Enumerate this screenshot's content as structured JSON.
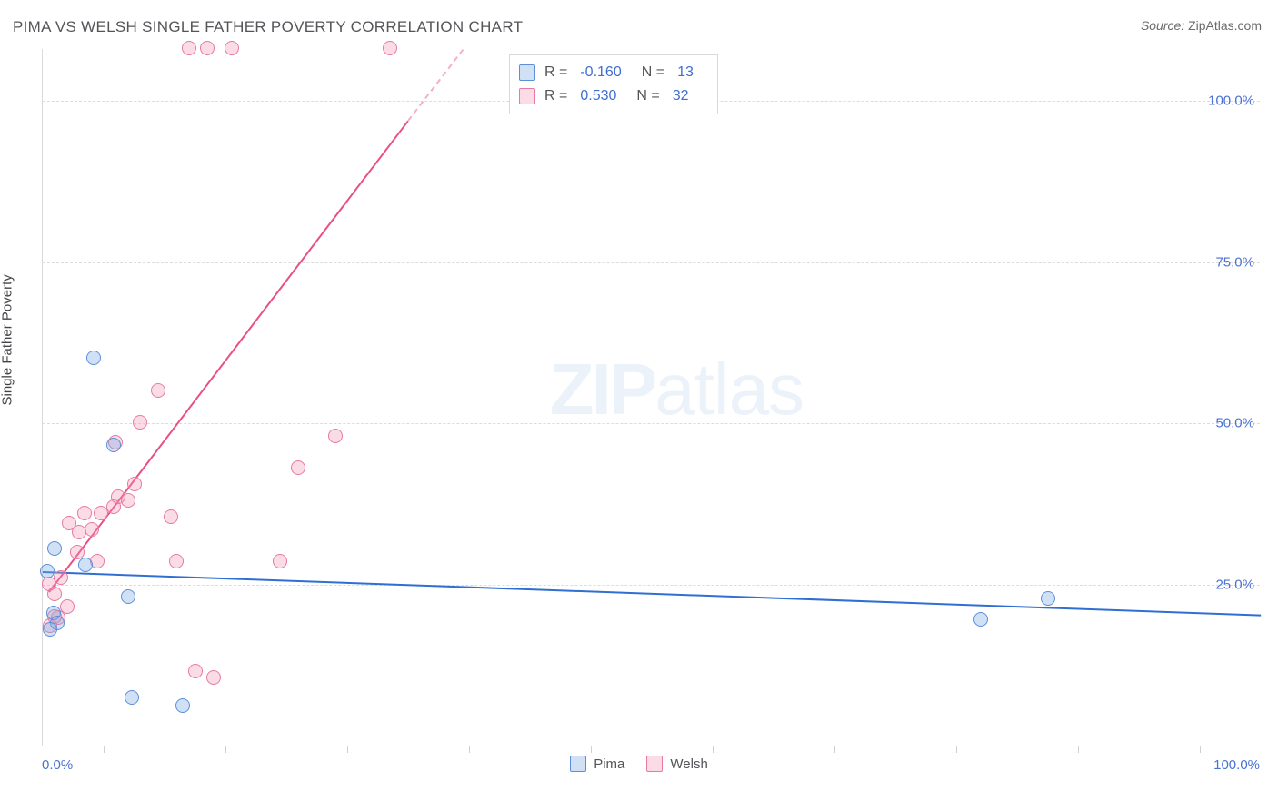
{
  "title": "PIMA VS WELSH SINGLE FATHER POVERTY CORRELATION CHART",
  "source_label": "Source:",
  "source_value": "ZipAtlas.com",
  "axis": {
    "y_title": "Single Father Poverty",
    "x_min_label": "0.0%",
    "x_max_label": "100.0%",
    "y_ticks": [
      {
        "value": 25,
        "label": "25.0%"
      },
      {
        "value": 50,
        "label": "50.0%"
      },
      {
        "value": 75,
        "label": "75.0%"
      },
      {
        "value": 100,
        "label": "100.0%"
      }
    ],
    "x_tick_positions": [
      5,
      15,
      25,
      35,
      45,
      55,
      65,
      75,
      85,
      95
    ],
    "xlim": [
      0,
      100
    ],
    "ylim": [
      0,
      108
    ],
    "grid_color": "#dcdce0",
    "axis_line_color": "#d9d9de",
    "label_color": "#4a72d4",
    "tick_fontsize": 15,
    "title_fontsize": 17
  },
  "series": {
    "pima": {
      "label": "Pima",
      "marker_fill": "rgba(120,168,230,0.35)",
      "marker_stroke": "#5b8fd9",
      "trend_color": "#2f6fd0",
      "R_label": "R =",
      "R_value": "-0.160",
      "N_label": "N =",
      "N_value": "13",
      "trend": {
        "x1": 0,
        "y1": 27.2,
        "x2": 100,
        "y2": 20.5
      },
      "points": [
        {
          "x": 1.0,
          "y": 30.5
        },
        {
          "x": 0.4,
          "y": 27.0
        },
        {
          "x": 7.0,
          "y": 23.0
        },
        {
          "x": 0.9,
          "y": 20.5
        },
        {
          "x": 1.2,
          "y": 19.0
        },
        {
          "x": 0.6,
          "y": 18.0
        },
        {
          "x": 7.3,
          "y": 7.5
        },
        {
          "x": 11.5,
          "y": 6.2
        },
        {
          "x": 4.2,
          "y": 60.0
        },
        {
          "x": 3.5,
          "y": 28.0
        },
        {
          "x": 5.8,
          "y": 46.5
        },
        {
          "x": 77.0,
          "y": 19.5
        },
        {
          "x": 82.5,
          "y": 22.8
        }
      ]
    },
    "welsh": {
      "label": "Welsh",
      "marker_fill": "rgba(244,150,180,0.33)",
      "marker_stroke": "#e77aa0",
      "trend_color": "#e94e87",
      "R_label": "R =",
      "R_value": "0.530",
      "N_label": "N =",
      "N_value": "32",
      "trend_solid": {
        "x1": 0.5,
        "y1": 24.0,
        "x2": 30.0,
        "y2": 97.0
      },
      "trend_dash": {
        "x1": 30.0,
        "y1": 97.0,
        "x2": 34.5,
        "y2": 108.0
      },
      "points": [
        {
          "x": 1.0,
          "y": 23.5
        },
        {
          "x": 1.5,
          "y": 26.0
        },
        {
          "x": 0.5,
          "y": 25.0
        },
        {
          "x": 2.0,
          "y": 21.5
        },
        {
          "x": 1.3,
          "y": 19.8
        },
        {
          "x": 0.6,
          "y": 18.5
        },
        {
          "x": 1.0,
          "y": 20.0
        },
        {
          "x": 3.0,
          "y": 33.0
        },
        {
          "x": 2.2,
          "y": 34.5
        },
        {
          "x": 4.0,
          "y": 33.5
        },
        {
          "x": 3.4,
          "y": 36.0
        },
        {
          "x": 4.8,
          "y": 36.0
        },
        {
          "x": 5.8,
          "y": 37.0
        },
        {
          "x": 6.2,
          "y": 38.5
        },
        {
          "x": 7.0,
          "y": 38.0
        },
        {
          "x": 10.5,
          "y": 35.5
        },
        {
          "x": 7.5,
          "y": 40.5
        },
        {
          "x": 8.0,
          "y": 50.0
        },
        {
          "x": 9.5,
          "y": 55.0
        },
        {
          "x": 4.5,
          "y": 28.5
        },
        {
          "x": 11.0,
          "y": 28.5
        },
        {
          "x": 19.5,
          "y": 28.5
        },
        {
          "x": 21.0,
          "y": 43.0
        },
        {
          "x": 24.0,
          "y": 48.0
        },
        {
          "x": 12.0,
          "y": 108.0
        },
        {
          "x": 13.5,
          "y": 108.0
        },
        {
          "x": 15.5,
          "y": 108.0
        },
        {
          "x": 28.5,
          "y": 108.0
        },
        {
          "x": 12.5,
          "y": 11.5
        },
        {
          "x": 14.0,
          "y": 10.5
        },
        {
          "x": 2.8,
          "y": 30.0
        },
        {
          "x": 6.0,
          "y": 47.0
        }
      ]
    }
  },
  "watermark": {
    "pre": "ZIP",
    "post": "atlas"
  },
  "colors": {
    "text": "#555559",
    "value": "#3f6fd0",
    "background": "#ffffff"
  }
}
